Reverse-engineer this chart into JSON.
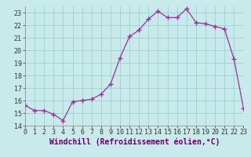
{
  "hours": [
    0,
    1,
    2,
    3,
    4,
    5,
    6,
    7,
    8,
    9,
    10,
    11,
    12,
    13,
    14,
    15,
    16,
    17,
    18,
    19,
    20,
    21,
    22,
    23
  ],
  "values": [
    15.6,
    15.2,
    15.2,
    14.9,
    14.4,
    15.9,
    16.0,
    16.1,
    16.5,
    17.3,
    19.4,
    21.1,
    21.6,
    22.5,
    23.1,
    22.6,
    22.6,
    23.3,
    22.2,
    22.1,
    21.9,
    21.7,
    19.3,
    15.4
  ],
  "line_color": "#993399",
  "marker": "+",
  "marker_size": 4,
  "bg_color": "#c8eaea",
  "grid_color": "#a0d0d0",
  "ylim": [
    14,
    23.5
  ],
  "xlim": [
    0,
    23
  ],
  "yticks": [
    14,
    15,
    16,
    17,
    18,
    19,
    20,
    21,
    22,
    23
  ],
  "xticks": [
    0,
    1,
    2,
    3,
    4,
    5,
    6,
    7,
    8,
    9,
    10,
    11,
    12,
    13,
    14,
    15,
    16,
    17,
    18,
    19,
    20,
    21,
    22,
    23
  ],
  "xlabel": "Windchill (Refroidissement éolien,°C)",
  "xlabel_fontsize": 7,
  "tick_fontsize": 6,
  "ytick_labels": [
    "14",
    "15",
    "16",
    "17",
    "18",
    "19",
    "20",
    "21",
    "22",
    "23"
  ]
}
